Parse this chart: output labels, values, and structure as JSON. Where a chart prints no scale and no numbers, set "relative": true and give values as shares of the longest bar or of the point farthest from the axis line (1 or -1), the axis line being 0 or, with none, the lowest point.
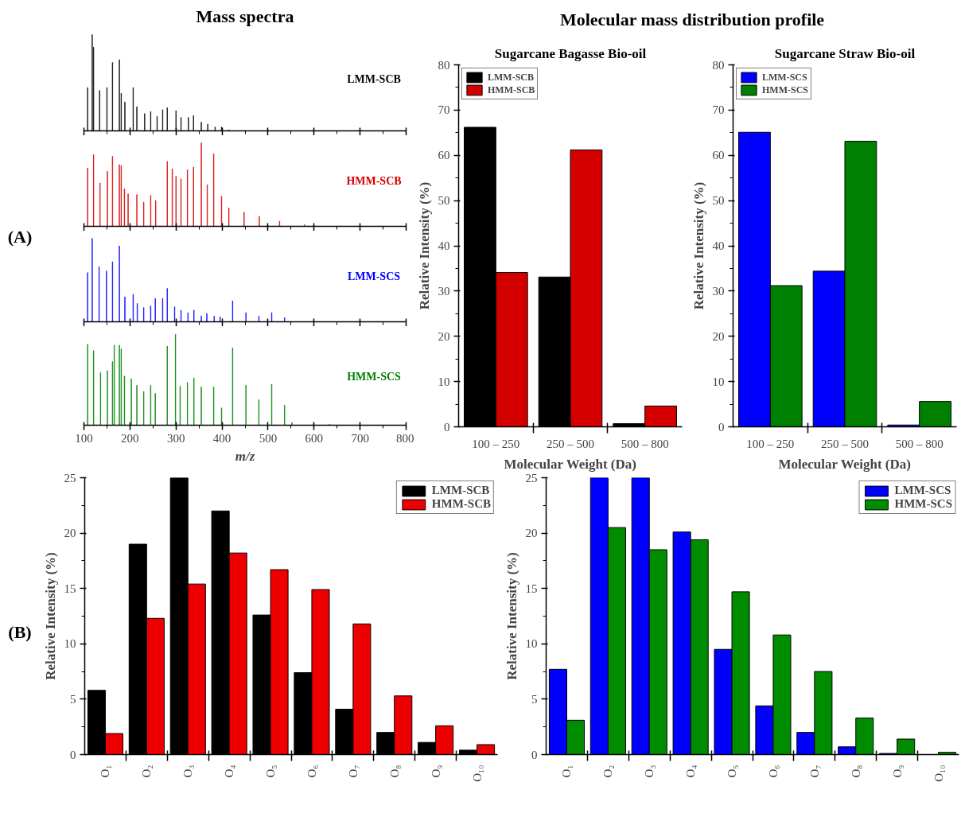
{
  "chart_data": [
    {
      "type": "bar",
      "title": "Mass spectra",
      "relative": true,
      "xlim": [
        100,
        800
      ],
      "xticks": [
        100,
        200,
        300,
        400,
        500,
        600,
        700,
        800
      ],
      "tick_labels": false,
      "grid": false,
      "legend": false,
      "annotations": [
        "(A)"
      ],
      "series": [
        {
          "name": "LMM-SCB",
          "color": "#000000",
          "x": [
            108,
            118,
            121,
            134,
            150,
            162,
            177,
            181,
            189,
            207,
            215,
            232,
            245,
            259,
            271,
            281,
            300,
            311,
            327,
            338,
            355,
            369,
            385,
            399,
            415
          ],
          "values": [
            0.45,
            1,
            0.87,
            0.42,
            0.45,
            0.71,
            0.74,
            0.39,
            0.3,
            0.45,
            0.25,
            0.18,
            0.2,
            0.15,
            0.22,
            0.24,
            0.21,
            0.14,
            0.14,
            0.16,
            0.09,
            0.07,
            0.04,
            0.04,
            0.01
          ]
        }
      ]
    },
    {
      "type": "bar",
      "relative": true,
      "xlim": [
        100,
        800
      ],
      "xticks": [
        100,
        200,
        300,
        400,
        500,
        600,
        700,
        800
      ],
      "tick_labels": false,
      "grid": false,
      "legend": false,
      "series": [
        {
          "name": "HMM-SCB",
          "color": "#d40000",
          "x": [
            108,
            121,
            135,
            151,
            162,
            177,
            181,
            188,
            196,
            215,
            230,
            245,
            256,
            281,
            292,
            300,
            311,
            325,
            338,
            355,
            368,
            382,
            399,
            415,
            448,
            481,
            525,
            579
          ],
          "values": [
            0.7,
            0.86,
            0.52,
            0.66,
            0.84,
            0.74,
            0.73,
            0.45,
            0.39,
            0.38,
            0.29,
            0.37,
            0.31,
            0.78,
            0.69,
            0.6,
            0.57,
            0.68,
            0.71,
            1,
            0.5,
            0.87,
            0.36,
            0.22,
            0.17,
            0.12,
            0.06,
            0.02
          ]
        }
      ]
    },
    {
      "type": "bar",
      "relative": true,
      "xlim": [
        100,
        800
      ],
      "xticks": [
        100,
        200,
        300,
        400,
        500,
        600,
        700,
        800
      ],
      "tick_labels": false,
      "grid": false,
      "legend": false,
      "series": [
        {
          "name": "LMM-SCS",
          "color": "#0000ff",
          "x": [
            108,
            118,
            133,
            149,
            162,
            177,
            189,
            207,
            216,
            230,
            245,
            255,
            271,
            281,
            297,
            311,
            326,
            339,
            355,
            367,
            383,
            396,
            423,
            452,
            480,
            508,
            536
          ],
          "values": [
            0.59,
            1,
            0.66,
            0.61,
            0.72,
            0.91,
            0.3,
            0.33,
            0.22,
            0.17,
            0.19,
            0.28,
            0.28,
            0.4,
            0.18,
            0.14,
            0.11,
            0.14,
            0.07,
            0.1,
            0.07,
            0.06,
            0.25,
            0.11,
            0.07,
            0.11,
            0.05
          ]
        }
      ]
    },
    {
      "type": "bar",
      "relative": true,
      "xlim": [
        100,
        800
      ],
      "xticks": [
        100,
        200,
        300,
        400,
        500,
        600,
        700,
        800
      ],
      "tick_labels": "x",
      "xlabel": "m/z",
      "grid": false,
      "legend": false,
      "series": [
        {
          "name": "HMM-SCS",
          "color": "#008000",
          "x": [
            108,
            121,
            136,
            151,
            162,
            166,
            177,
            181,
            188,
            203,
            215,
            230,
            245,
            255,
            281,
            299,
            309,
            325,
            339,
            355,
            382,
            399,
            423,
            452,
            480,
            508,
            536,
            552,
            634
          ],
          "values": [
            0.89,
            0.82,
            0.58,
            0.6,
            0.7,
            0.88,
            0.88,
            0.84,
            0.54,
            0.51,
            0.44,
            0.37,
            0.44,
            0.35,
            0.87,
            1,
            0.43,
            0.47,
            0.52,
            0.42,
            0.42,
            0.19,
            0.85,
            0.44,
            0.28,
            0.45,
            0.22,
            0.03,
            0.01
          ]
        }
      ]
    },
    {
      "type": "bar",
      "title": "Sugarcane Bagasse Bio-oil",
      "xlabel": "Molecular Weight (Da)",
      "ylabel": "Relative Intensity (%)",
      "categories": [
        "100 – 250",
        "250 – 500",
        "500 – 800"
      ],
      "ylim": [
        0,
        80
      ],
      "yticks": [
        0,
        10,
        20,
        30,
        40,
        50,
        60,
        70,
        80
      ],
      "grid": false,
      "legend": "top left",
      "annotations": [
        "Molecular mass distribution profile"
      ],
      "series": [
        {
          "name": "LMM-SCB",
          "color": "#000000",
          "values": [
            66.2,
            33.1,
            0.7
          ]
        },
        {
          "name": "HMM-SCB",
          "color": "#d40000",
          "values": [
            34.1,
            61.2,
            4.6
          ]
        }
      ]
    },
    {
      "type": "bar",
      "title": "Sugarcane Straw Bio-oil",
      "xlabel": "Molecular Weight (Da)",
      "ylabel": "Relative Intensity (%)",
      "categories": [
        "100 – 250",
        "250 – 500",
        "500 – 800"
      ],
      "ylim": [
        0,
        80
      ],
      "yticks": [
        0,
        10,
        20,
        30,
        40,
        50,
        60,
        70,
        80
      ],
      "grid": false,
      "legend": "top left",
      "series": [
        {
          "name": "LMM-SCS",
          "color": "#0000ff",
          "values": [
            65.1,
            34.4,
            0.4
          ]
        },
        {
          "name": "HMM-SCS",
          "color": "#008000",
          "values": [
            31.2,
            63.1,
            5.6
          ]
        }
      ]
    },
    {
      "type": "bar",
      "ylabel": "Relative Intensity (%)",
      "categories": [
        "O₁",
        "O₂",
        "O₃",
        "O₄",
        "O₅",
        "O₆",
        "O₇",
        "O₈",
        "O₉",
        "O₁₀"
      ],
      "ylim": [
        0,
        25
      ],
      "yticks": [
        0,
        5,
        10,
        15,
        20,
        25
      ],
      "grid": false,
      "legend": "top right",
      "annotations": [
        "(B)"
      ],
      "series": [
        {
          "name": "LMM-SCB",
          "color": "#000000",
          "values": [
            5.8,
            19.0,
            25.0,
            22.0,
            12.6,
            7.4,
            4.1,
            2.0,
            1.1,
            0.4
          ]
        },
        {
          "name": "HMM-SCB",
          "color": "#ee0000",
          "values": [
            1.9,
            12.3,
            15.4,
            18.2,
            16.7,
            14.9,
            11.8,
            5.3,
            2.6,
            0.9
          ]
        }
      ]
    },
    {
      "type": "bar",
      "ylabel": "Relative Intensity (%)",
      "categories": [
        "O₁",
        "O₂",
        "O₃",
        "O₄",
        "O₅",
        "O₆",
        "O₇",
        "O₈",
        "O₉",
        "O₁₀"
      ],
      "ylim": [
        0,
        25
      ],
      "yticks": [
        0,
        5,
        10,
        15,
        20,
        25
      ],
      "grid": false,
      "legend": "top right",
      "series": [
        {
          "name": "LMM-SCS",
          "color": "#0000ff",
          "values": [
            7.7,
            25.0,
            25.0,
            20.1,
            9.5,
            4.4,
            2.0,
            0.7,
            0.1,
            null
          ]
        },
        {
          "name": "HMM-SCS",
          "color": "#008c00",
          "values": [
            3.1,
            20.5,
            18.5,
            19.4,
            14.7,
            10.8,
            7.5,
            3.3,
            1.4,
            0.2
          ]
        }
      ]
    }
  ]
}
